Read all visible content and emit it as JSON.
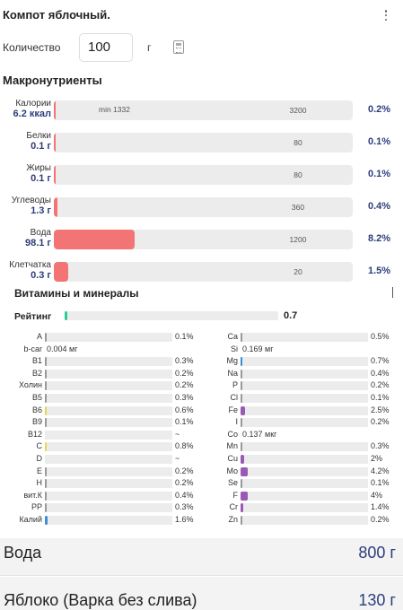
{
  "header": {
    "title": "Компот яблочный."
  },
  "quantity": {
    "label": "Количество",
    "value": "100",
    "unit": "г"
  },
  "macros": {
    "title": "Макронутриенты",
    "items": [
      {
        "name": "Калории",
        "value": "6.2 ккал",
        "min": "min 1332",
        "max": "3200",
        "pct": "0.2%",
        "level": 0.002
      },
      {
        "name": "Белки",
        "value": "0.1 г",
        "min": "",
        "max": "80",
        "pct": "0.1%",
        "level": 0.001
      },
      {
        "name": "Жиры",
        "value": "0.1 г",
        "min": "",
        "max": "80",
        "pct": "0.1%",
        "level": 0.001
      },
      {
        "name": "Углеводы",
        "value": "1.3 г",
        "min": "",
        "max": "360",
        "pct": "0.4%",
        "level": 0.004
      },
      {
        "name": "Вода",
        "value": "98.1 г",
        "min": "",
        "max": "1200",
        "pct": "8.2%",
        "level": 0.082
      },
      {
        "name": "Клетчатка",
        "value": "0.3 г",
        "min": "",
        "max": "20",
        "pct": "1.5%",
        "level": 0.015
      }
    ]
  },
  "vitamins": {
    "title": "Витамины и минералы",
    "rating_label": "Рейтинг",
    "rating_value": "0.7",
    "left": [
      {
        "name": "A",
        "pct": "0.1%",
        "level": 0.001,
        "color": "#999999"
      },
      {
        "name": "b-car",
        "text": "0.004 мг"
      },
      {
        "name": "B1",
        "pct": "0.3%",
        "level": 0.003,
        "color": "#999999"
      },
      {
        "name": "B2",
        "pct": "0.2%",
        "level": 0.002,
        "color": "#999999"
      },
      {
        "name": "Холин",
        "pct": "0.2%",
        "level": 0.002,
        "color": "#999999"
      },
      {
        "name": "B5",
        "pct": "0.3%",
        "level": 0.003,
        "color": "#999999"
      },
      {
        "name": "B6",
        "pct": "0.6%",
        "level": 0.006,
        "color": "#e8d84a"
      },
      {
        "name": "B9",
        "pct": "0.1%",
        "level": 0.001,
        "color": "#999999"
      },
      {
        "name": "B12",
        "pct": "~",
        "level": 0,
        "color": "#999999"
      },
      {
        "name": "C",
        "pct": "0.8%",
        "level": 0.008,
        "color": "#e8d84a"
      },
      {
        "name": "D",
        "pct": "~",
        "level": 0,
        "color": "#999999"
      },
      {
        "name": "E",
        "pct": "0.2%",
        "level": 0.002,
        "color": "#999999"
      },
      {
        "name": "H",
        "pct": "0.2%",
        "level": 0.002,
        "color": "#999999"
      },
      {
        "name": "вит.К",
        "pct": "0.4%",
        "level": 0.004,
        "color": "#999999"
      },
      {
        "name": "PP",
        "pct": "0.3%",
        "level": 0.003,
        "color": "#999999"
      },
      {
        "name": "Калий",
        "pct": "1.6%",
        "level": 0.016,
        "color": "#3b8fd6"
      }
    ],
    "right": [
      {
        "name": "Ca",
        "pct": "0.5%",
        "level": 0.005,
        "color": "#999999"
      },
      {
        "name": "Si",
        "text": "0.169 мг"
      },
      {
        "name": "Mg",
        "pct": "0.7%",
        "level": 0.007,
        "color": "#3b8fd6"
      },
      {
        "name": "Na",
        "pct": "0.4%",
        "level": 0.004,
        "color": "#999999"
      },
      {
        "name": "P",
        "pct": "0.2%",
        "level": 0.002,
        "color": "#999999"
      },
      {
        "name": "Cl",
        "pct": "0.1%",
        "level": 0.001,
        "color": "#999999"
      },
      {
        "name": "Fe",
        "pct": "2.5%",
        "level": 0.025,
        "color": "#9b59b6"
      },
      {
        "name": "I",
        "pct": "0.2%",
        "level": 0.002,
        "color": "#999999"
      },
      {
        "name": "Co",
        "text": "0.137 мкг"
      },
      {
        "name": "Mn",
        "pct": "0.3%",
        "level": 0.003,
        "color": "#999999"
      },
      {
        "name": "Cu",
        "pct": "2%",
        "level": 0.02,
        "color": "#9b59b6"
      },
      {
        "name": "Mo",
        "pct": "4.2%",
        "level": 0.042,
        "color": "#9b59b6"
      },
      {
        "name": "Se",
        "pct": "0.1%",
        "level": 0.001,
        "color": "#999999"
      },
      {
        "name": "F",
        "pct": "4%",
        "level": 0.04,
        "color": "#9b59b6"
      },
      {
        "name": "Cr",
        "pct": "1.4%",
        "level": 0.014,
        "color": "#9b59b6"
      },
      {
        "name": "Zn",
        "pct": "0.2%",
        "level": 0.002,
        "color": "#999999"
      }
    ]
  },
  "ingredients": [
    {
      "name": "Вода",
      "amount": "800 г"
    },
    {
      "name": "Яблоко (Варка без слива)",
      "amount": "130 г"
    }
  ]
}
